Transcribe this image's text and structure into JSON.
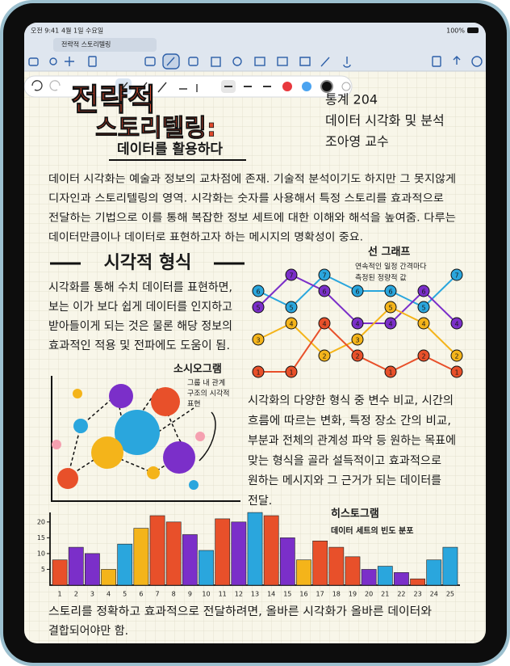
{
  "status_bar": {
    "time": "오전 9:41",
    "date": "4월 1일 수요일",
    "battery": "100%"
  },
  "tab": {
    "title": "전략적 스토리텔링"
  },
  "note": {
    "title_line1": "전략적",
    "title_line2": "스토리텔링:",
    "subtitle": "데이터를 활용하다",
    "course": [
      "통계 204",
      "데이터 시각화 및 분석",
      "조아영 교수"
    ],
    "intro": [
      "데이터 시각화는 예술과 정보의 교차점에 존재. 기술적 분석이기도 하지만 그 못지않게",
      "디자인과 스토리텔링의 영역. 시각화는 숫자를 사용해서 특정 스토리를 효과적으로",
      "전달하는 기법으로 이를 통해 복잡한 정보 세트에 대한 이해와 해석을 높여줌. 다루는",
      "데이터만큼이나 데이터로 표현하고자 하는 메시지의 명확성이 중요."
    ],
    "section_heading": "시각적 형식",
    "section_text": [
      "시각화를 통해 수치 데이터를 표현하면,",
      "보는 이가 보다 쉽게 데이터를 인지하고",
      "받아들이게 되는 것은 물론 해당 정보의",
      "효과적인 적용 및 전파에도 도움이 됨."
    ],
    "sociogram": {
      "title": "소시오그램",
      "caption": [
        "그룹 내 관계",
        "구조의 시각적",
        "표현"
      ]
    },
    "body": [
      "시각화의 다양한 형식 중 변수 비교, 시간의",
      "흐름에 따르는 변화, 특정 장소 간의 비교,",
      "부분과 전체의 관계성 파악 등 원하는 목표에",
      "맞는 형식을 골라 설득적이고 효과적으로",
      "원하는 메시지와 그 근거가 되는 데이터를",
      "전달."
    ],
    "closing": [
      "스토리를 정확하고 효과적으로 전달하려면, 올바른 시각화가 올바른 데이터와",
      "결합되어야만 함."
    ]
  },
  "line_chart": {
    "type": "line",
    "title": "선 그래프",
    "caption": [
      "연속적인 일정 간격마다",
      "측정된 정량적 값"
    ],
    "ylim": [
      1,
      7
    ],
    "series": [
      {
        "color": "#2aa6dd",
        "values": [
          6,
          5,
          7,
          6,
          6,
          5,
          7
        ]
      },
      {
        "color": "#7b2fc9",
        "values": [
          5,
          7,
          6,
          4,
          4,
          6,
          4
        ]
      },
      {
        "color": "#f4b41a",
        "values": [
          3,
          4,
          2,
          3,
          5,
          4,
          2
        ]
      },
      {
        "color": "#e8502a",
        "values": [
          1,
          1,
          4,
          2,
          1,
          2,
          1
        ]
      }
    ]
  },
  "histogram": {
    "type": "bar",
    "title": "히스토그램",
    "subtitle": "데이터 세트의 빈도 분포",
    "categories": [
      "1",
      "2",
      "3",
      "4",
      "5",
      "6",
      "7",
      "8",
      "9",
      "10",
      "11",
      "12",
      "13",
      "14",
      "15",
      "16",
      "17",
      "18",
      "19",
      "20",
      "21",
      "22",
      "23",
      "24",
      "25"
    ],
    "values": [
      8,
      12,
      10,
      5,
      13,
      18,
      22,
      20,
      16,
      11,
      21,
      20,
      23,
      22,
      15,
      8,
      14,
      12,
      9,
      5,
      6,
      4,
      2,
      8,
      12
    ],
    "colors": [
      "#e8502a",
      "#7b2fc9",
      "#7b2fc9",
      "#f4b41a",
      "#2aa6dd",
      "#f4b41a",
      "#e8502a",
      "#e8502a",
      "#7b2fc9",
      "#2aa6dd",
      "#e8502a",
      "#7b2fc9",
      "#2aa6dd",
      "#e8502a",
      "#7b2fc9",
      "#f4b41a",
      "#e8502a",
      "#e8502a",
      "#e8502a",
      "#7b2fc9",
      "#2aa6dd",
      "#7b2fc9",
      "#e8502a",
      "#2aa6dd",
      "#2aa6dd"
    ],
    "ylim": [
      0,
      22
    ],
    "yticks": [
      5,
      10,
      15,
      20
    ]
  }
}
